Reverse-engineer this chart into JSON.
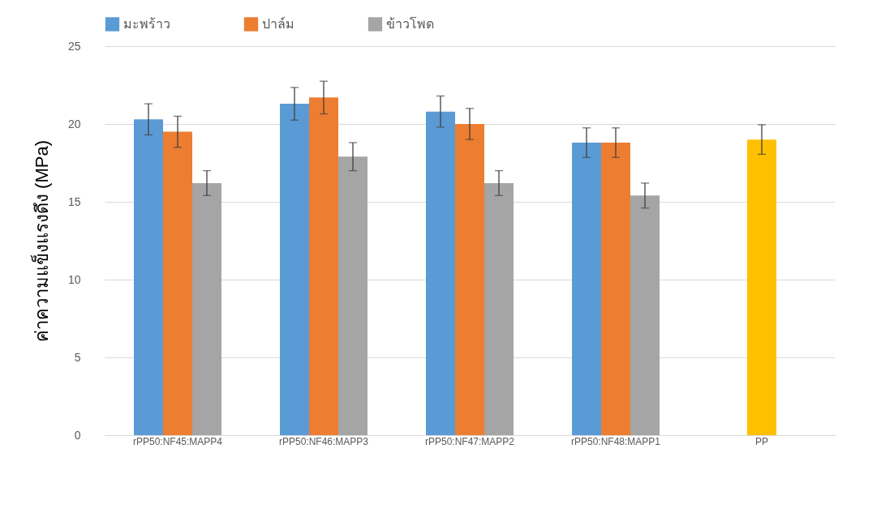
{
  "chart_data": {
    "type": "bar",
    "ylabel": "ค่าความแข็งแรงดึง (MPa)",
    "categories": [
      "rPP50:NF45:MAPP4",
      "rPP50:NF46:MAPP3",
      "rPP50:NF47:MAPP2",
      "rPP50:NF48:MAPP1",
      "PP"
    ],
    "series": [
      {
        "name": "มะพร้าว",
        "color": "#5b9bd5",
        "values": [
          20.3,
          21.3,
          20.8,
          18.8,
          null
        ],
        "errors": [
          1.0,
          1.05,
          1.0,
          0.95,
          null
        ]
      },
      {
        "name": "ปาล์ม",
        "color": "#ed7d31",
        "colors": [
          "#ed7d31",
          "#ed7d31",
          "#ed7d31",
          "#ed7d31",
          "#ffc000"
        ],
        "values": [
          19.5,
          21.7,
          20.0,
          18.8,
          19.0
        ],
        "errors": [
          1.0,
          1.05,
          1.0,
          0.95,
          0.95
        ]
      },
      {
        "name": "ข้าวโพด",
        "color": "#a5a5a5",
        "values": [
          16.2,
          17.9,
          16.2,
          15.4,
          null
        ],
        "errors": [
          0.8,
          0.9,
          0.8,
          0.8,
          null
        ]
      }
    ],
    "ylim": [
      0,
      25
    ],
    "yticks": [
      0,
      5,
      10,
      15,
      20,
      25
    ],
    "grid": "y",
    "legend": "top left"
  }
}
